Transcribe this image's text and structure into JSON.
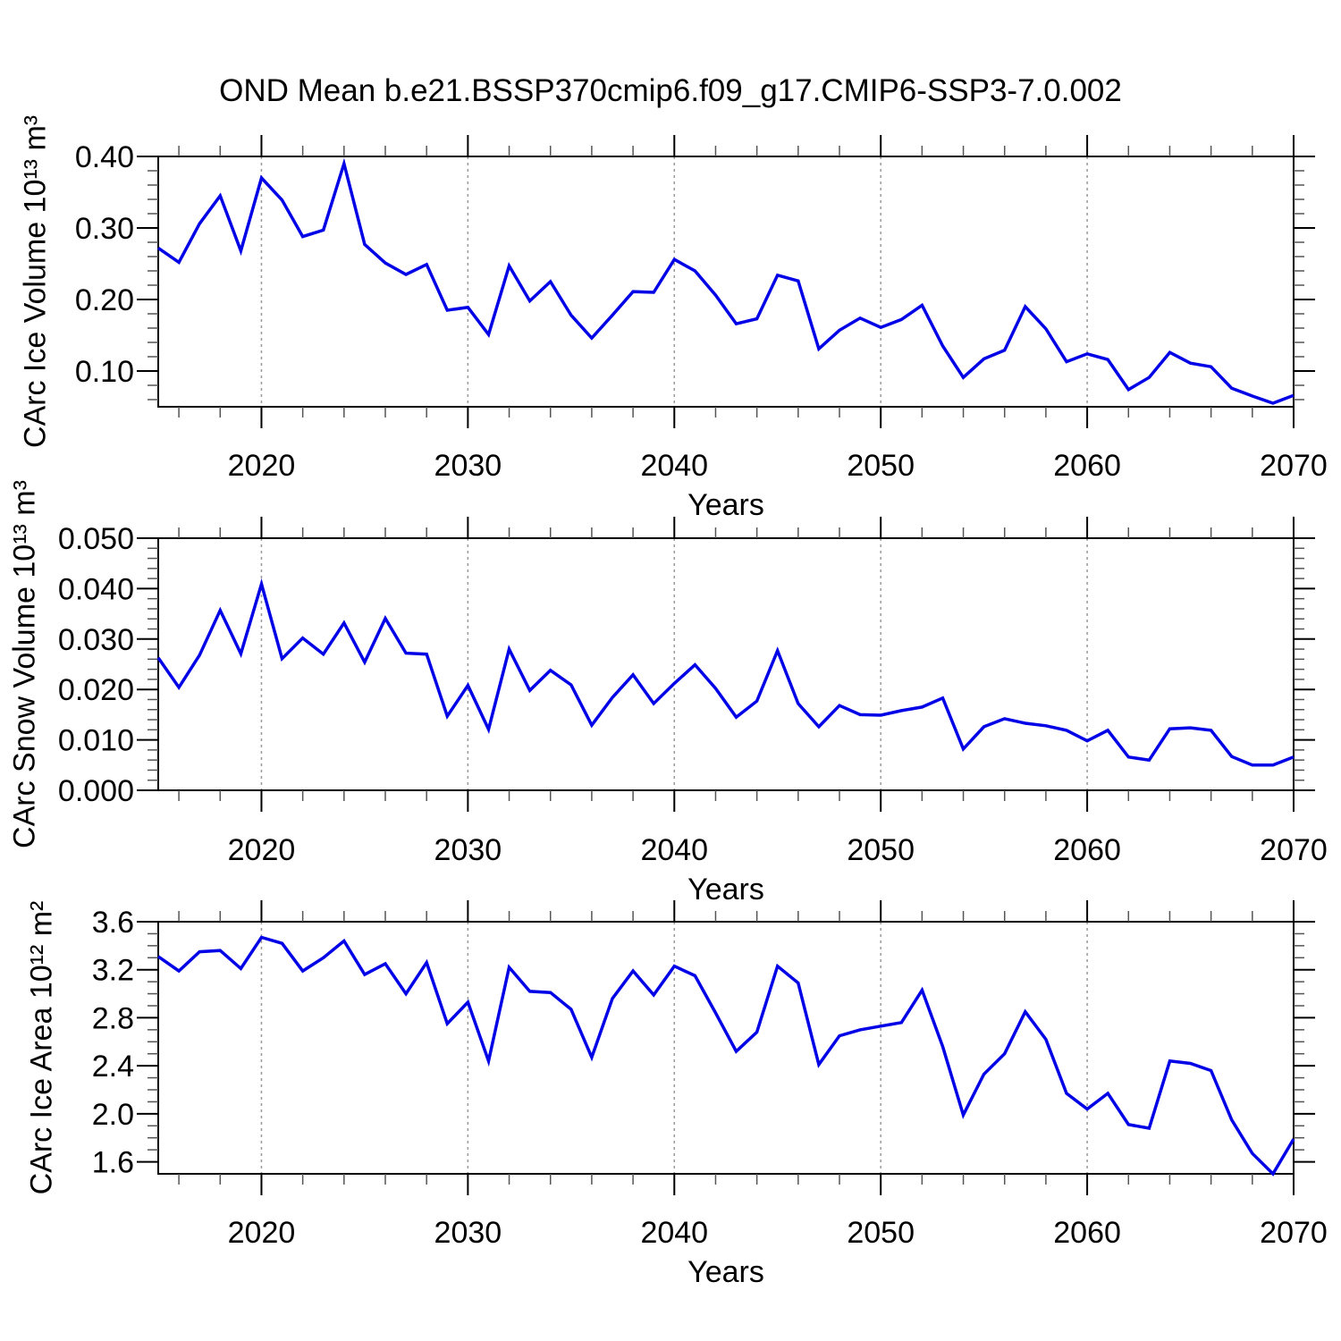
{
  "title": "OND Mean b.e21.BSSP370cmip6.f09_g17.CMIP6-SSP3-7.0.002",
  "colors": {
    "line": "#0000e6",
    "grid": "#999999",
    "axis": "#000000",
    "minor_tick": "#555555",
    "text": "#000000"
  },
  "chart_data": {
    "type": "line",
    "legend": "none",
    "grid": "vertical dashed at decades",
    "x": {
      "label": "Years",
      "range": [
        2015,
        2070
      ],
      "major_ticks": [
        2020,
        2030,
        2040,
        2050,
        2060,
        2070
      ],
      "major_tick_labels": [
        "2020",
        "2030",
        "2040",
        "2050",
        "2060",
        "2070"
      ],
      "minor_tick_step": 2,
      "gridlines": [
        2020,
        2030,
        2040,
        2050,
        2060
      ],
      "years": [
        2015,
        2016,
        2017,
        2018,
        2019,
        2020,
        2021,
        2022,
        2023,
        2024,
        2025,
        2026,
        2027,
        2028,
        2029,
        2030,
        2031,
        2032,
        2033,
        2034,
        2035,
        2036,
        2037,
        2038,
        2039,
        2040,
        2041,
        2042,
        2043,
        2044,
        2045,
        2046,
        2047,
        2048,
        2049,
        2050,
        2051,
        2052,
        2053,
        2054,
        2055,
        2056,
        2057,
        2058,
        2059,
        2060,
        2061,
        2062,
        2063,
        2064,
        2065,
        2066,
        2067,
        2068,
        2069,
        2070
      ]
    },
    "panels": [
      {
        "name": "ice-volume",
        "ylabel": "CArc Ice Volume 10¹³ m³",
        "xlabel": "Years",
        "ylim": [
          0.05,
          0.4
        ],
        "yticks": [
          0.1,
          0.2,
          0.3,
          0.4
        ],
        "ytick_labels": [
          "0.10",
          "0.20",
          "0.30",
          "0.40"
        ],
        "yminor_step": 0.02,
        "values": [
          0.272,
          0.252,
          0.306,
          0.345,
          0.268,
          0.37,
          0.339,
          0.288,
          0.297,
          0.39,
          0.277,
          0.251,
          0.235,
          0.249,
          0.185,
          0.189,
          0.151,
          0.247,
          0.198,
          0.225,
          0.178,
          0.146,
          0.178,
          0.211,
          0.21,
          0.256,
          0.24,
          0.206,
          0.166,
          0.173,
          0.234,
          0.226,
          0.131,
          0.157,
          0.174,
          0.161,
          0.172,
          0.192,
          0.135,
          0.091,
          0.117,
          0.129,
          0.19,
          0.159,
          0.113,
          0.124,
          0.116,
          0.074,
          0.091,
          0.126,
          0.111,
          0.106,
          0.076,
          0.065,
          0.055,
          0.066
        ]
      },
      {
        "name": "snow-volume",
        "ylabel": "CArc Snow Volume 10¹³ m³",
        "xlabel": "Years",
        "ylim": [
          0.0,
          0.05
        ],
        "yticks": [
          0.0,
          0.01,
          0.02,
          0.03,
          0.04,
          0.05
        ],
        "ytick_labels": [
          "0.000",
          "0.010",
          "0.020",
          "0.030",
          "0.040",
          "0.050"
        ],
        "yminor_step": 0.002,
        "values": [
          0.0263,
          0.0204,
          0.0268,
          0.0357,
          0.0271,
          0.0409,
          0.0261,
          0.0302,
          0.027,
          0.0332,
          0.0254,
          0.0341,
          0.0272,
          0.027,
          0.0147,
          0.0208,
          0.0121,
          0.028,
          0.0198,
          0.0238,
          0.0209,
          0.0129,
          0.0184,
          0.0229,
          0.0172,
          0.0212,
          0.0249,
          0.0202,
          0.0145,
          0.0177,
          0.0277,
          0.0172,
          0.0126,
          0.0168,
          0.015,
          0.0149,
          0.0158,
          0.0165,
          0.0183,
          0.0082,
          0.0126,
          0.0142,
          0.0133,
          0.0128,
          0.0119,
          0.0098,
          0.0119,
          0.0066,
          0.006,
          0.0122,
          0.0124,
          0.0119,
          0.0067,
          0.005,
          0.005,
          0.0066
        ]
      },
      {
        "name": "ice-area",
        "ylabel": "CArc Ice Area 10¹² m²",
        "xlabel": "Years",
        "ylim": [
          1.5,
          3.6
        ],
        "yticks": [
          1.6,
          2.0,
          2.4,
          2.8,
          3.2,
          3.6
        ],
        "ytick_labels": [
          "1.6",
          "2.0",
          "2.4",
          "2.8",
          "3.2",
          "3.6"
        ],
        "yminor_step": 0.1,
        "values": [
          3.31,
          3.19,
          3.35,
          3.36,
          3.21,
          3.47,
          3.42,
          3.19,
          3.3,
          3.44,
          3.16,
          3.25,
          3.0,
          3.26,
          2.75,
          2.93,
          2.44,
          3.22,
          3.02,
          3.01,
          2.87,
          2.47,
          2.96,
          3.19,
          2.99,
          3.23,
          3.15,
          2.84,
          2.52,
          2.68,
          3.23,
          3.09,
          2.41,
          2.65,
          2.7,
          2.73,
          2.76,
          3.03,
          2.56,
          1.99,
          2.33,
          2.5,
          2.85,
          2.62,
          2.17,
          2.04,
          2.17,
          1.91,
          1.88,
          2.44,
          2.42,
          2.36,
          1.95,
          1.67,
          1.5,
          1.79
        ]
      }
    ]
  }
}
